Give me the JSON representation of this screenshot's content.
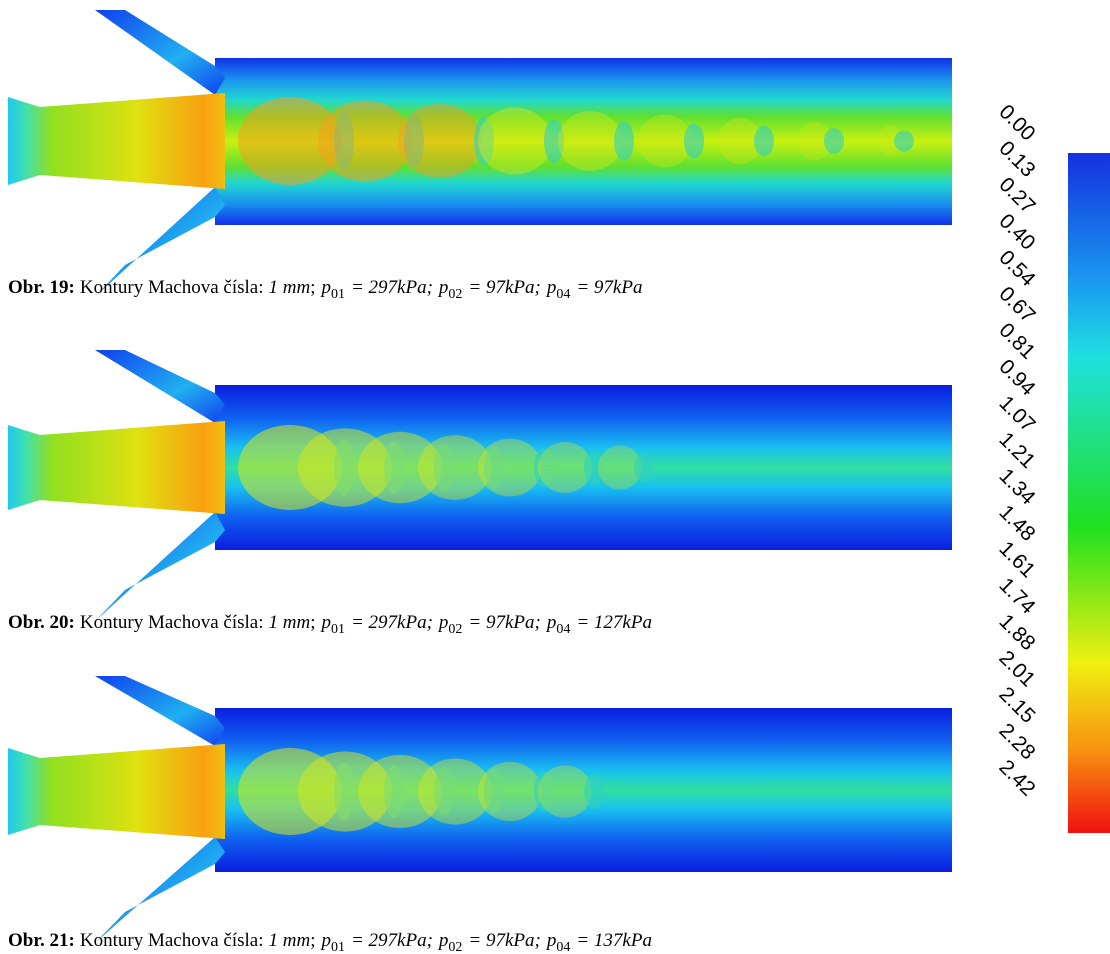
{
  "figures": [
    {
      "label": "Obr. 19:",
      "text": "Kontury Machova čísla:",
      "size": "1 mm",
      "sep": ";",
      "params": [
        {
          "symbol": "p",
          "sub": "01",
          "eq": "= 297kPa;"
        },
        {
          "symbol": "p",
          "sub": "02",
          "eq": "= 97kPa;"
        },
        {
          "symbol": "p",
          "sub": "04",
          "eq": "= 97kPa"
        }
      ]
    },
    {
      "label": "Obr. 20:",
      "text": "Kontury Machova čísla:",
      "size": "1 mm",
      "sep": ";",
      "params": [
        {
          "symbol": "p",
          "sub": "01",
          "eq": "= 297kPa;"
        },
        {
          "symbol": "p",
          "sub": "02",
          "eq": "= 97kPa;"
        },
        {
          "symbol": "p",
          "sub": "04",
          "eq": "= 127kPa"
        }
      ]
    },
    {
      "label": "Obr. 21:",
      "text": "Kontury Machova čísla:",
      "size": "1 mm",
      "sep": ";",
      "params": [
        {
          "symbol": "p",
          "sub": "01",
          "eq": "= 297kPa;"
        },
        {
          "symbol": "p",
          "sub": "02",
          "eq": "= 97kPa;"
        },
        {
          "symbol": "p",
          "sub": "04",
          "eq": "= 137kPa"
        }
      ]
    }
  ],
  "colorbar": {
    "labels": [
      "0.00",
      "0.13",
      "0.27",
      "0.40",
      "0.54",
      "0.67",
      "0.81",
      "0.94",
      "1.07",
      "1.21",
      "1.34",
      "1.48",
      "1.61",
      "1.74",
      "1.88",
      "2.01",
      "2.15",
      "2.28",
      "2.42"
    ]
  }
}
